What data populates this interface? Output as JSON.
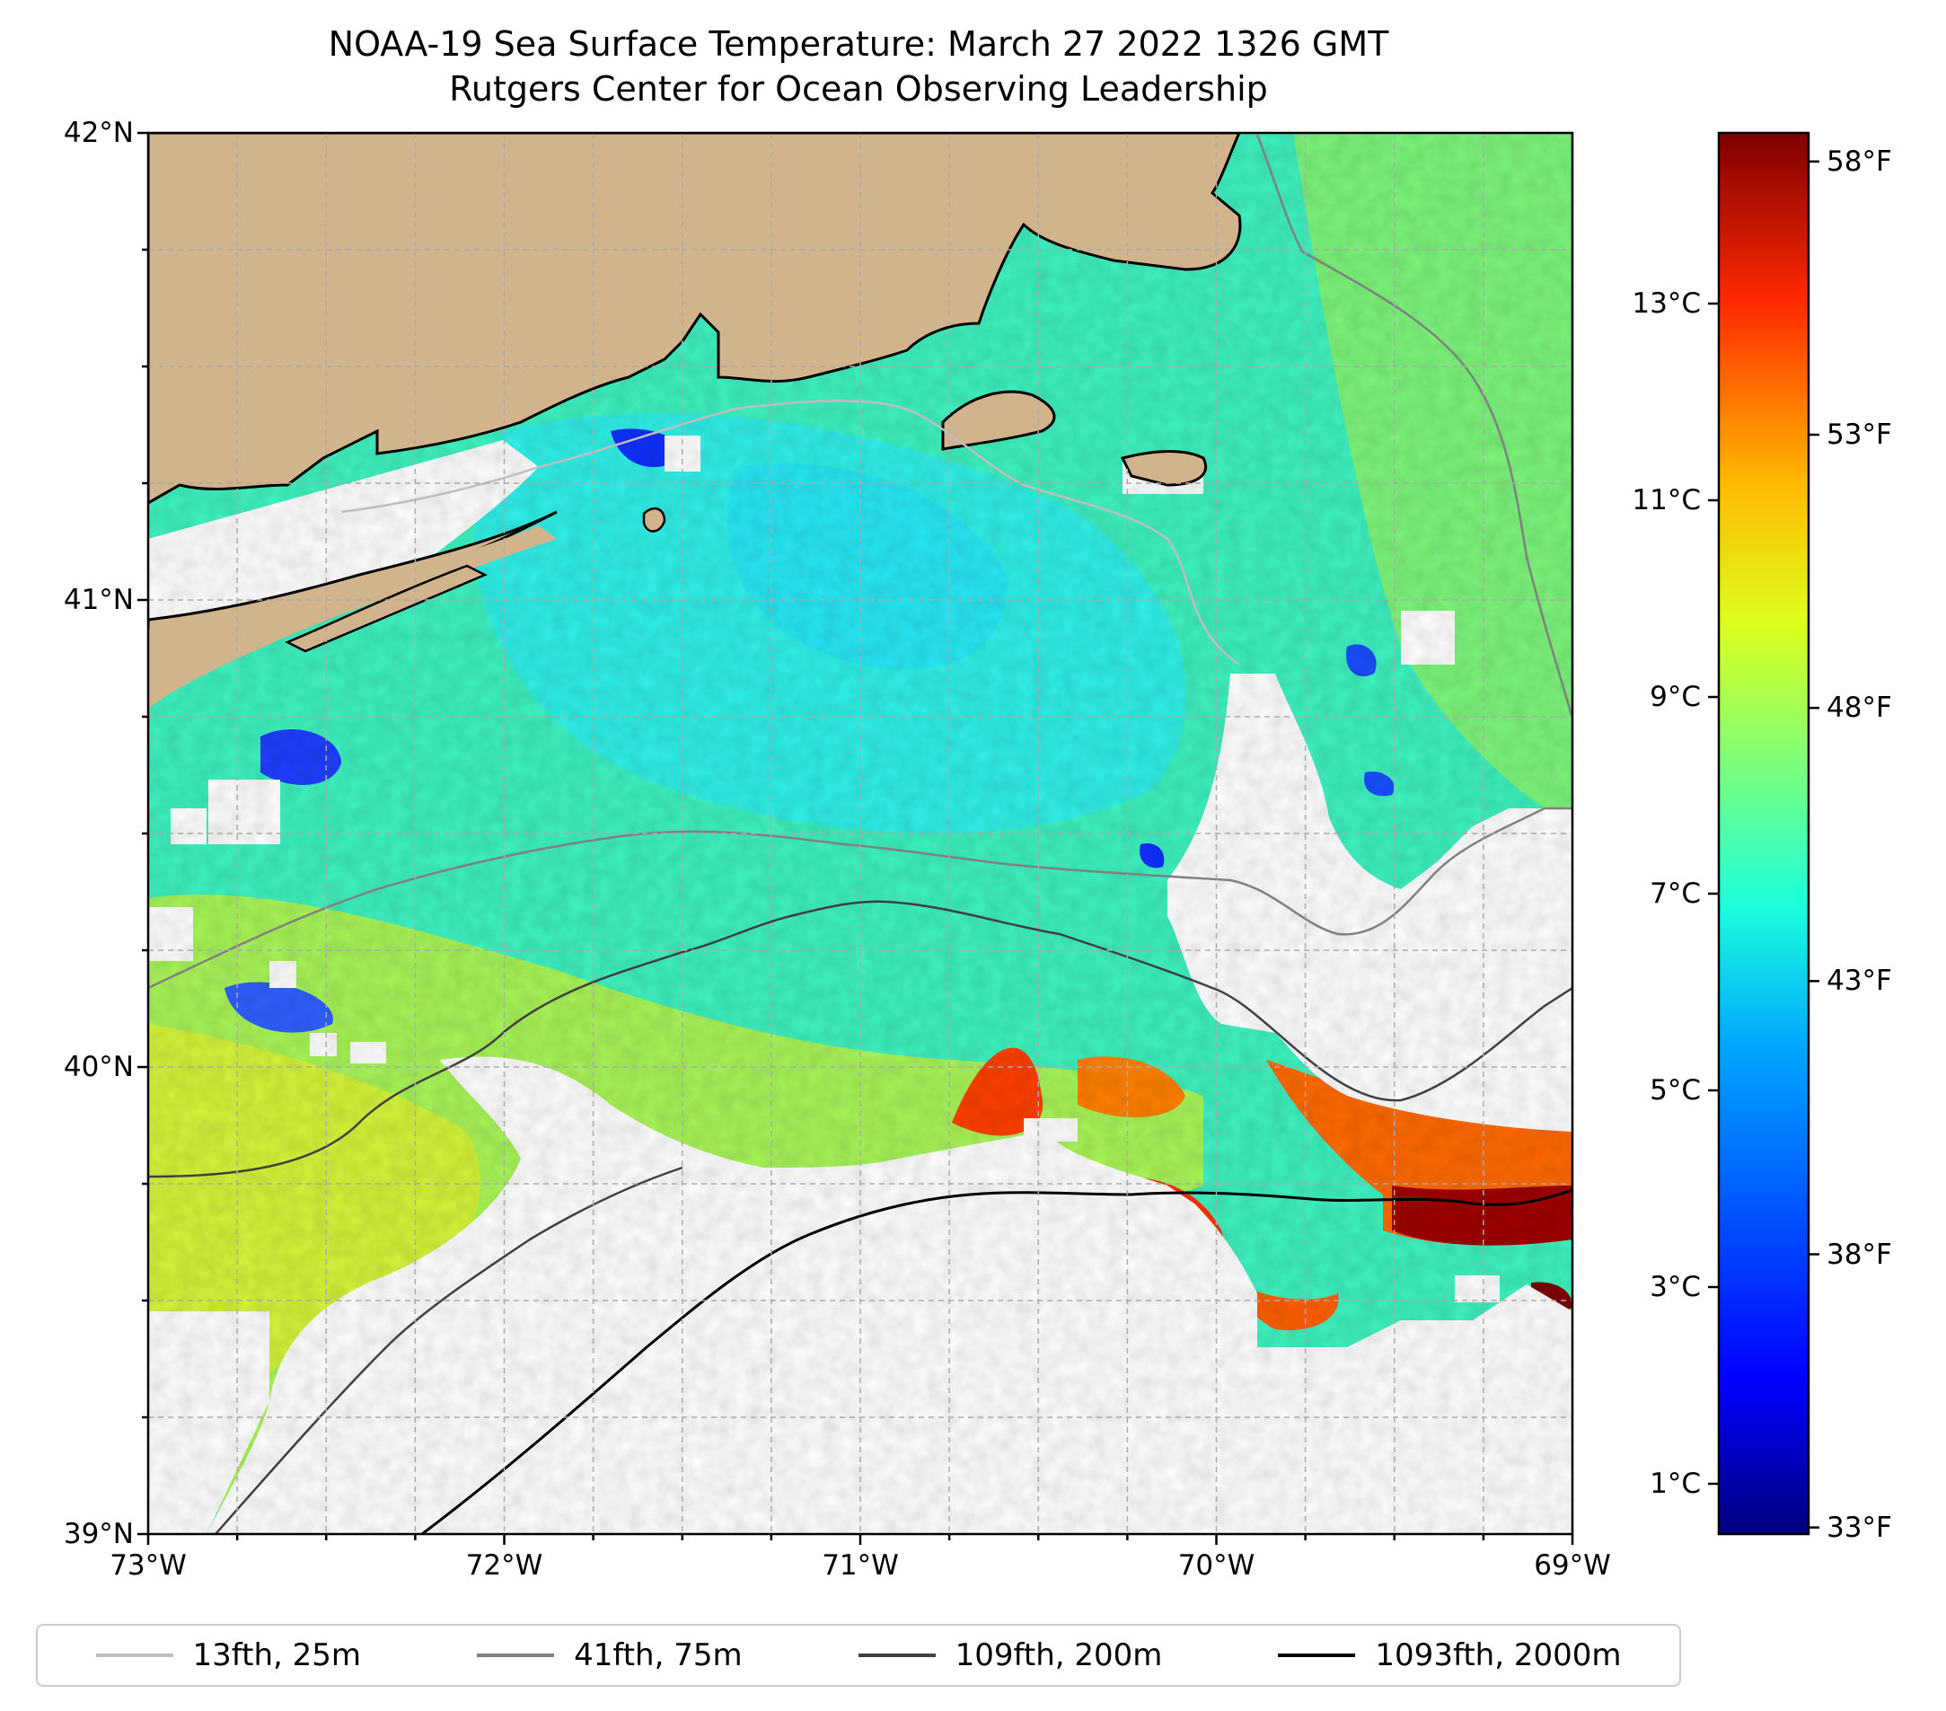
{
  "title": {
    "line1": "NOAA-19 Sea Surface Temperature: March 27 2022 1326 GMT",
    "line2": "Rutgers Center for Ocean Observing Leadership"
  },
  "map": {
    "lat_range": [
      39,
      42
    ],
    "lon_range": [
      -73,
      -69
    ],
    "lat_ticks": [
      {
        "value": 42,
        "label": "42°N"
      },
      {
        "value": 41,
        "label": "41°N"
      },
      {
        "value": 40,
        "label": "40°N"
      },
      {
        "value": 39,
        "label": "39°N"
      }
    ],
    "lon_ticks": [
      {
        "value": -73,
        "label": "73°W"
      },
      {
        "value": -72,
        "label": "72°W"
      },
      {
        "value": -71,
        "label": "71°W"
      },
      {
        "value": -70,
        "label": "70°W"
      },
      {
        "value": -69,
        "label": "69°W"
      }
    ],
    "gridlines": true,
    "gridline_step_deg": 0.25,
    "land_color": "#d2b48c",
    "coast_color": "#000000",
    "no_data_color": "#ffffff"
  },
  "colorbar": {
    "colormap": "jet",
    "celsius_ticks": [
      {
        "value": 1,
        "label": "1°C"
      },
      {
        "value": 3,
        "label": "3°C"
      },
      {
        "value": 5,
        "label": "5°C"
      },
      {
        "value": 7,
        "label": "7°C"
      },
      {
        "value": 9,
        "label": "9°C"
      },
      {
        "value": 11,
        "label": "11°C"
      },
      {
        "value": 13,
        "label": "13°C"
      }
    ],
    "fahrenheit_ticks": [
      {
        "value": 33,
        "label": "33°F"
      },
      {
        "value": 38,
        "label": "38°F"
      },
      {
        "value": 43,
        "label": "43°F"
      },
      {
        "value": 48,
        "label": "48°F"
      },
      {
        "value": 53,
        "label": "53°F"
      },
      {
        "value": 58,
        "label": "58°F"
      }
    ]
  },
  "legend": {
    "items": [
      {
        "label": "13fth, 25m",
        "color": "#bebebe"
      },
      {
        "label": "41fth, 75m",
        "color": "#808080"
      },
      {
        "label": "109fth, 200m",
        "color": "#404040"
      },
      {
        "label": "1093fth, 2000m",
        "color": "#000000"
      }
    ]
  }
}
